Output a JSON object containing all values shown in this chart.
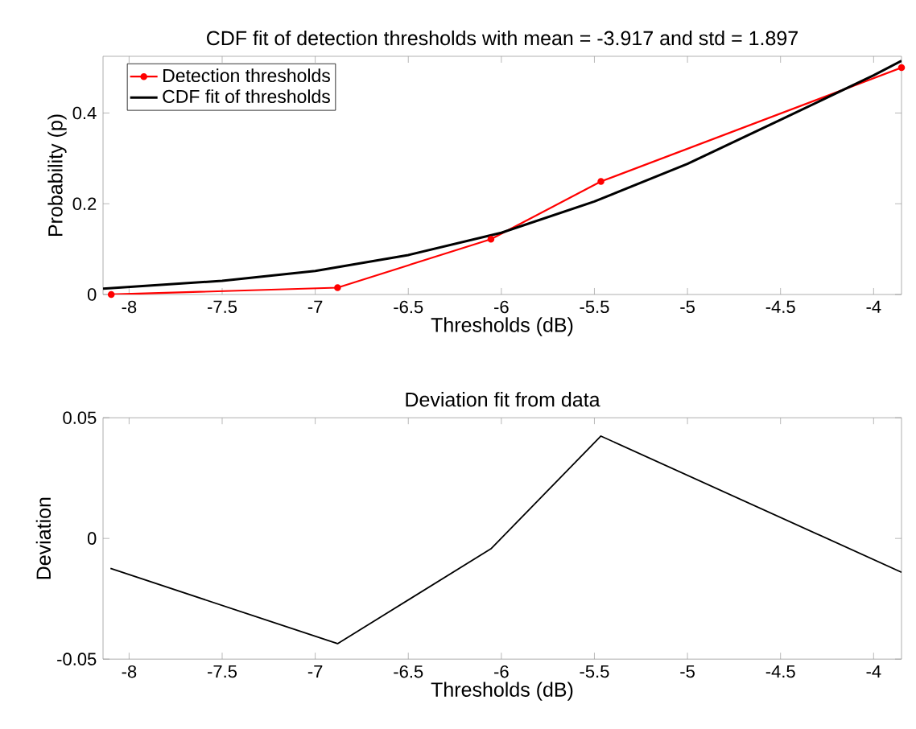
{
  "chart_data": [
    {
      "type": "line",
      "title": "CDF fit of detection thresholds with mean = -3.917 and std = 1.897",
      "xlabel": "Thresholds (dB)",
      "ylabel": "Probability (p)",
      "xlim": [
        -8.14,
        -3.85
      ],
      "ylim": [
        0,
        0.525
      ],
      "xticks": [
        -8,
        -7.5,
        -7,
        -6.5,
        -6,
        -5.5,
        -5,
        -4.5,
        -4
      ],
      "yticks": [
        0,
        0.2,
        0.4
      ],
      "legend": "top left",
      "grid": false,
      "series": [
        {
          "name": "Detection thresholds",
          "color": "#ff0000",
          "marker": "circle",
          "x": [
            -8.096,
            -6.88,
            -6.056,
            -5.465,
            -3.85
          ],
          "values": [
            0,
            0.015,
            0.122,
            0.249,
            0.5
          ]
        },
        {
          "name": "CDF fit of thresholds",
          "color": "#000000",
          "marker": "none",
          "x": [
            -8.14,
            -7.5,
            -7,
            -6.5,
            -6,
            -5.5,
            -5,
            -4.5,
            -4,
            -3.85
          ],
          "values": [
            0.013,
            0.03,
            0.052,
            0.087,
            0.136,
            0.205,
            0.288,
            0.385,
            0.483,
            0.515
          ]
        }
      ]
    },
    {
      "type": "line",
      "title": "Deviation fit from data",
      "xlabel": "Thresholds (dB)",
      "ylabel": "Deviation",
      "xlim": [
        -8.14,
        -3.85
      ],
      "ylim": [
        -0.05,
        0.05
      ],
      "xticks": [
        -8,
        -7.5,
        -7,
        -6.5,
        -6,
        -5.5,
        -5,
        -4.5,
        -4
      ],
      "yticks": [
        -0.05,
        0,
        0.05
      ],
      "grid": false,
      "series": [
        {
          "color": "#000000",
          "marker": "none",
          "x": [
            -8.1,
            -6.88,
            -6.056,
            -5.465,
            -3.85
          ],
          "values": [
            -0.0124,
            -0.0436,
            -0.0043,
            0.0424,
            -0.014
          ]
        }
      ]
    }
  ]
}
